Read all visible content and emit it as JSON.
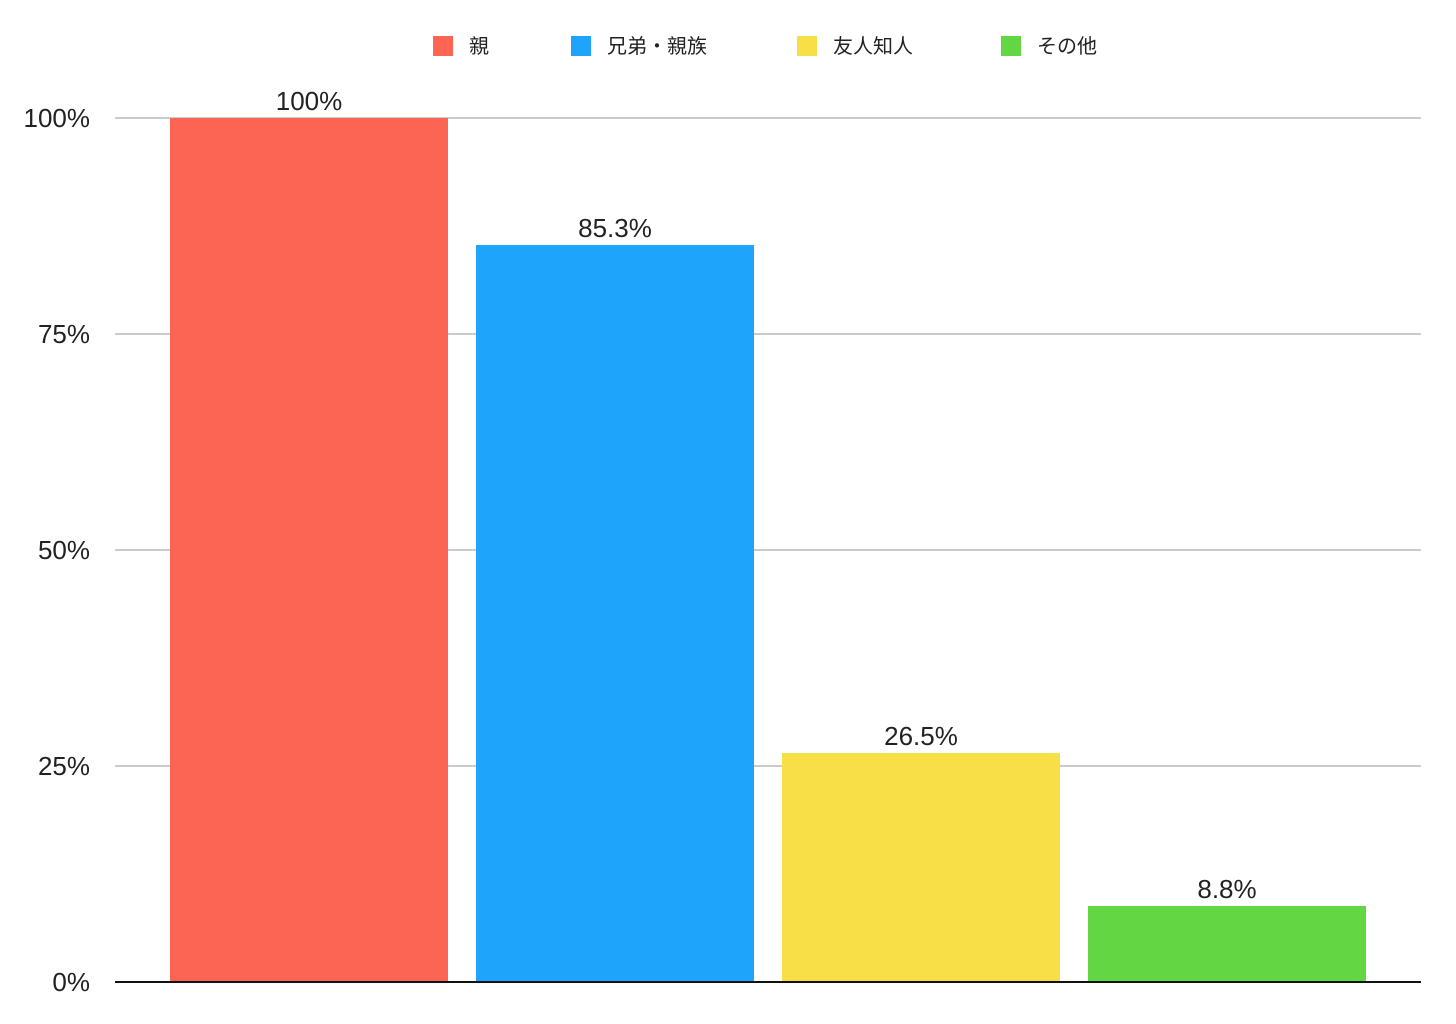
{
  "chart_data": {
    "type": "bar",
    "categories": [
      "親",
      "兄弟・親族",
      "友人知人",
      "その他"
    ],
    "values": [
      100,
      85.3,
      26.5,
      8.8
    ],
    "value_labels": [
      "100%",
      "85.3%",
      "26.5%",
      "8.8%"
    ],
    "colors": [
      "#FC6454",
      "#1EA5FB",
      "#F8DF47",
      "#62D643"
    ],
    "ylim": [
      0,
      100
    ],
    "yticks": [
      0,
      25,
      50,
      75,
      100
    ],
    "ytick_labels": [
      "0%",
      "25%",
      "50%",
      "75%",
      "100%"
    ],
    "grid": true,
    "legend_position": "top-center",
    "title": "",
    "xlabel": "",
    "ylabel": ""
  }
}
